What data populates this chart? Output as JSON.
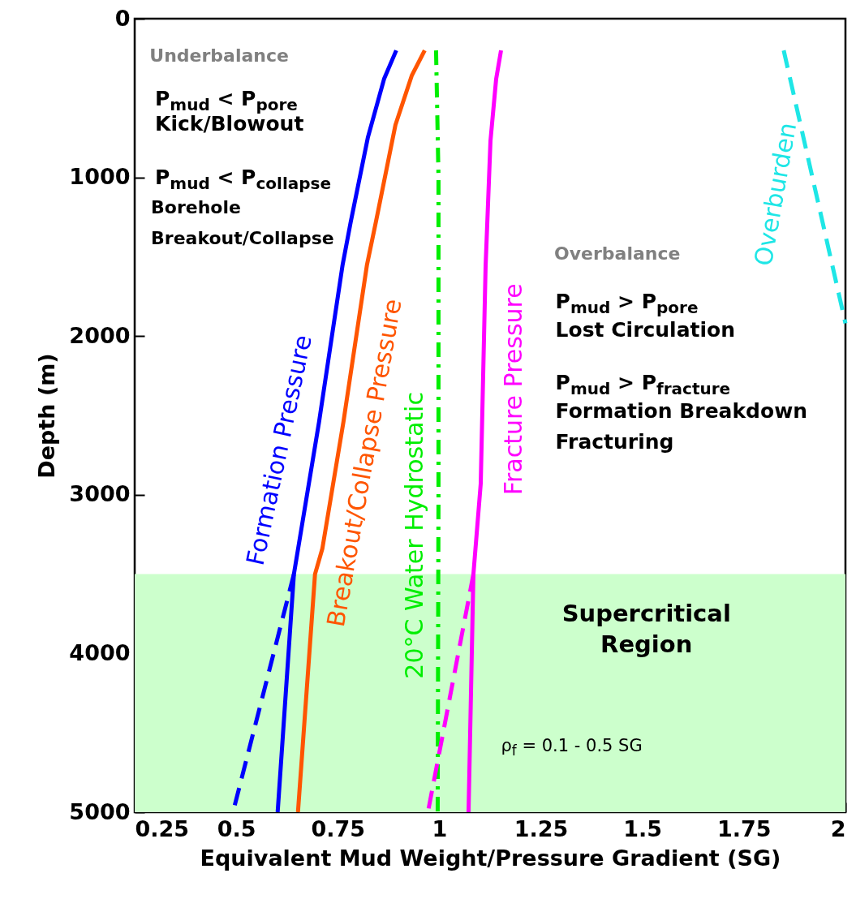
{
  "chart_data": {
    "type": "line",
    "xlabel": "Equivalent Mud Weight/Pressure Gradient (SG)",
    "ylabel": "Depth (m)",
    "xlim": [
      0.25,
      2
    ],
    "xticks": [
      0.25,
      0.5,
      0.75,
      1,
      1.25,
      1.5,
      1.75,
      2
    ],
    "ylim": [
      5000,
      0
    ],
    "yticks": [
      0,
      1000,
      2000,
      3000,
      4000,
      5000
    ],
    "series": [
      {
        "name": "Formation Pressure",
        "color": "#0000ff",
        "line_style": "solid",
        "x": [
          0.894,
          0.864,
          0.824,
          0.782,
          0.762,
          0.704,
          0.642,
          0.602
        ],
        "values": [
          200,
          380,
          750,
          1280,
          1550,
          2540,
          3500,
          5000
        ]
      },
      {
        "color": "#0000ff",
        "line_style": "dashed",
        "x": [
          0.642,
          0.492
        ],
        "values": [
          3500,
          5000
        ]
      },
      {
        "name": "Breakout/Collapse Pressure",
        "color": "#ff5500",
        "line_style": "solid",
        "x": [
          0.964,
          0.932,
          0.892,
          0.844,
          0.822,
          0.764,
          0.712,
          0.694,
          0.652
        ],
        "values": [
          200,
          360,
          670,
          1280,
          1550,
          2540,
          3340,
          3500,
          5000
        ]
      },
      {
        "name": "20°C Water Hydrostatic",
        "color": "#00ee00",
        "line_style": "dashdot",
        "x": [
          0.992,
          0.998,
          0.998,
          0.996
        ],
        "values": [
          200,
          1000,
          3000,
          5000
        ]
      },
      {
        "name": "Fracture Pressure",
        "color": "#ff00ff",
        "line_style": "solid",
        "x": [
          1.152,
          1.14,
          1.126,
          1.114,
          1.102,
          1.084,
          1.072
        ],
        "values": [
          200,
          380,
          770,
          1560,
          2930,
          3500,
          5000
        ]
      },
      {
        "color": "#ff00ff",
        "line_style": "dashed",
        "x": [
          1.084,
          0.972
        ],
        "values": [
          3500,
          5000
        ]
      },
      {
        "name": "Overburden",
        "color": "#1ee6e6",
        "line_style": "dashed",
        "x": [
          1.848,
          2.0
        ],
        "values": [
          200,
          1920
        ]
      }
    ],
    "bands": [
      {
        "axis": "y",
        "from": 3500,
        "to": 5000,
        "label": "Supercritical\nRegion",
        "color": "#ccffcc"
      }
    ],
    "annotations": [
      "Underbalance",
      "P$_{mud}$ < P$_{pore}$",
      "Kick/Blowout",
      "P$_{mud}$ < P$_{collapse}$",
      "Borehole\nBreakout/Collapse",
      "Overbalance",
      "P$_{mud}$ > P$_{pore}$",
      "Lost Circulation",
      "P$_{mud}$ > P$_{fracture}$",
      "Formation Breakdown\nFracturing",
      "ρ$_{f}$ = 0.1 - 0.5 SG"
    ]
  }
}
